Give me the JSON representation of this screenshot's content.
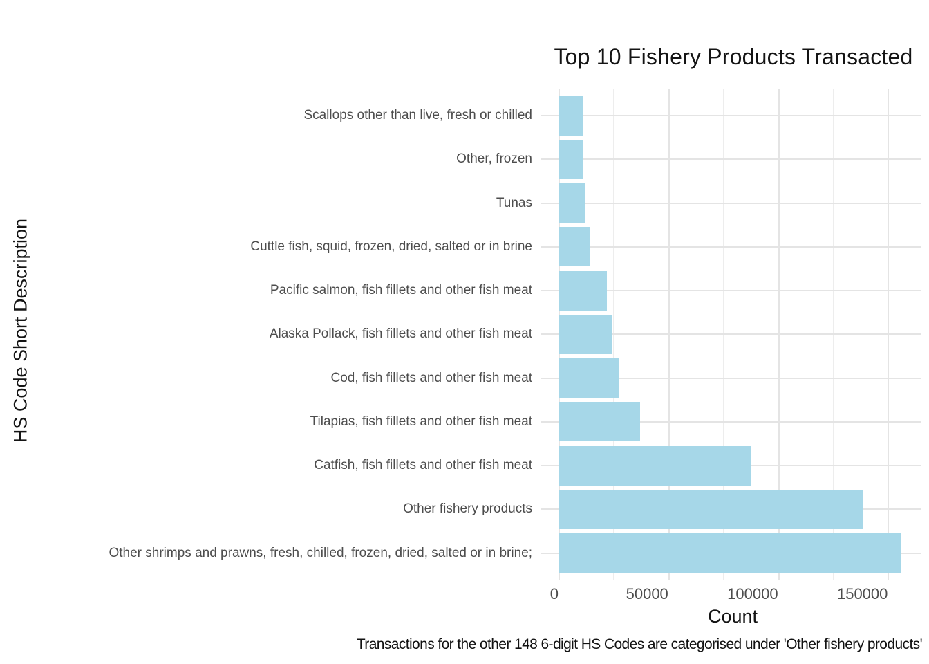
{
  "chart_data": {
    "type": "bar",
    "orientation": "horizontal",
    "title": "Top 10 Fishery Products Transacted",
    "xlabel": "Count",
    "ylabel": "HS Code Short Description",
    "caption": "Transactions for the other 148 6-digit HS Codes are categorised under 'Other fishery products'",
    "categories_top_to_bottom": [
      "Scallops other than live, fresh or chilled",
      "Other, frozen",
      "Tunas",
      "Cuttle fish, squid, frozen, dried, salted or in brine",
      "Pacific salmon, fish fillets and other fish meat",
      "Alaska Pollack, fish fillets and other fish meat",
      "Cod, fish fillets and other fish meat",
      "Tilapias, fish fillets and other fish meat",
      "Catfish, fish fillets and other fish meat",
      "Other fishery products",
      "Other shrimps and prawns, fresh, chilled, frozen, dried, salted or in brine;"
    ],
    "values": [
      10700,
      11000,
      11700,
      13900,
      21800,
      24200,
      27400,
      36800,
      87400,
      138200,
      155800
    ],
    "x_major_ticks": [
      0,
      50000,
      100000,
      150000
    ],
    "x_major_tick_labels": [
      "0",
      "50000",
      "100000",
      "150000"
    ],
    "x_minor_ticks": [
      25000,
      75000,
      125000
    ],
    "xlim": [
      0,
      164000
    ],
    "grid": true,
    "legend": "none",
    "colors": {
      "bar_fill": "#A6D7E8",
      "major_grid": "#E4E4E4",
      "minor_grid": "#EDEDED",
      "axis_text": "#4d4d4d",
      "title_text": "#141414",
      "background": "#ffffff"
    }
  }
}
